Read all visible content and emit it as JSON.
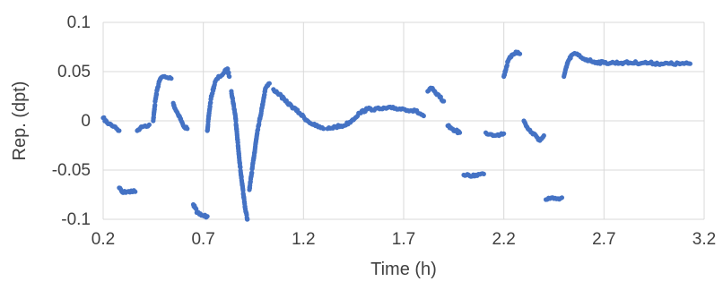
{
  "chart_data": {
    "type": "scatter",
    "title": "",
    "xlabel": "Time (h)",
    "ylabel": "Rep. (dpt)",
    "xlim": [
      0.2,
      3.2
    ],
    "ylim": [
      -0.1,
      0.1
    ],
    "x_ticks": [
      "0.2",
      "0.7",
      "1.2",
      "1.7",
      "2.2",
      "2.7",
      "3.2"
    ],
    "y_ticks": [
      "0.1",
      "0.05",
      "0",
      "-0.05",
      "-0.1"
    ],
    "grid": true,
    "legend": "none",
    "marker_color": "#4472C4",
    "series": [
      {
        "segments": [
          [
            [
              0.2,
              0.003
            ],
            [
              0.22,
              -0.002
            ],
            [
              0.24,
              -0.004
            ],
            [
              0.26,
              -0.006
            ],
            [
              0.28,
              -0.01
            ]
          ],
          [
            [
              0.28,
              -0.068
            ],
            [
              0.3,
              -0.073
            ],
            [
              0.32,
              -0.072
            ],
            [
              0.34,
              -0.071
            ],
            [
              0.36,
              -0.072
            ]
          ],
          [
            [
              0.37,
              -0.01
            ],
            [
              0.39,
              -0.006
            ],
            [
              0.41,
              -0.005
            ],
            [
              0.43,
              -0.004
            ]
          ],
          [
            [
              0.45,
              0.0
            ],
            [
              0.46,
              0.02
            ],
            [
              0.47,
              0.032
            ],
            [
              0.48,
              0.04
            ],
            [
              0.49,
              0.044
            ],
            [
              0.5,
              0.045
            ],
            [
              0.52,
              0.044
            ],
            [
              0.54,
              0.043
            ]
          ],
          [
            [
              0.55,
              0.018
            ],
            [
              0.56,
              0.012
            ],
            [
              0.58,
              0.005
            ],
            [
              0.6,
              -0.005
            ],
            [
              0.62,
              -0.008
            ]
          ],
          [
            [
              0.65,
              -0.085
            ],
            [
              0.67,
              -0.093
            ],
            [
              0.69,
              -0.096
            ],
            [
              0.72,
              -0.097
            ]
          ],
          [
            [
              0.72,
              -0.01
            ],
            [
              0.73,
              0.01
            ],
            [
              0.74,
              0.025
            ],
            [
              0.76,
              0.04
            ],
            [
              0.78,
              0.045
            ],
            [
              0.8,
              0.048
            ],
            [
              0.82,
              0.053
            ],
            [
              0.83,
              0.045
            ]
          ],
          [
            [
              0.84,
              0.03
            ],
            [
              0.86,
              0.005
            ],
            [
              0.88,
              -0.04
            ],
            [
              0.9,
              -0.075
            ],
            [
              0.91,
              -0.09
            ],
            [
              0.92,
              -0.1
            ]
          ],
          [
            [
              0.93,
              -0.07
            ],
            [
              0.95,
              -0.04
            ],
            [
              0.97,
              -0.01
            ],
            [
              0.99,
              0.01
            ],
            [
              1.01,
              0.033
            ],
            [
              1.03,
              0.038
            ]
          ],
          [
            [
              1.05,
              0.032
            ],
            [
              1.08,
              0.027
            ],
            [
              1.11,
              0.02
            ],
            [
              1.14,
              0.015
            ],
            [
              1.18,
              0.008
            ],
            [
              1.22,
              0.0
            ],
            [
              1.26,
              -0.005
            ],
            [
              1.3,
              -0.008
            ]
          ],
          [
            [
              1.32,
              -0.008
            ],
            [
              1.36,
              -0.006
            ],
            [
              1.4,
              -0.005
            ],
            [
              1.44,
              0.0
            ],
            [
              1.48,
              0.008
            ],
            [
              1.52,
              0.012
            ],
            [
              1.58,
              0.012
            ],
            [
              1.64,
              0.013
            ],
            [
              1.7,
              0.012
            ],
            [
              1.76,
              0.01
            ],
            [
              1.8,
              0.005
            ]
          ],
          [
            [
              1.82,
              0.03
            ],
            [
              1.84,
              0.033
            ],
            [
              1.86,
              0.028
            ],
            [
              1.88,
              0.024
            ],
            [
              1.9,
              0.02
            ]
          ],
          [
            [
              1.92,
              -0.005
            ],
            [
              1.94,
              -0.008
            ],
            [
              1.96,
              -0.01
            ],
            [
              1.98,
              -0.012
            ]
          ],
          [
            [
              2.0,
              -0.055
            ],
            [
              2.03,
              -0.056
            ],
            [
              2.06,
              -0.055
            ],
            [
              2.1,
              -0.054
            ]
          ],
          [
            [
              2.11,
              -0.012
            ],
            [
              2.14,
              -0.014
            ],
            [
              2.17,
              -0.014
            ],
            [
              2.2,
              -0.013
            ]
          ],
          [
            [
              2.2,
              0.045
            ],
            [
              2.22,
              0.06
            ],
            [
              2.24,
              0.067
            ],
            [
              2.26,
              0.07
            ],
            [
              2.28,
              0.068
            ]
          ],
          [
            [
              2.3,
              0.0
            ],
            [
              2.32,
              -0.008
            ],
            [
              2.34,
              -0.012
            ],
            [
              2.36,
              -0.015
            ],
            [
              2.38,
              -0.02
            ],
            [
              2.4,
              -0.015
            ]
          ],
          [
            [
              2.41,
              -0.08
            ],
            [
              2.43,
              -0.079
            ],
            [
              2.45,
              -0.079
            ],
            [
              2.47,
              -0.079
            ],
            [
              2.49,
              -0.078
            ]
          ],
          [
            [
              2.5,
              0.045
            ],
            [
              2.52,
              0.06
            ],
            [
              2.54,
              0.067
            ],
            [
              2.56,
              0.068
            ],
            [
              2.6,
              0.063
            ],
            [
              2.65,
              0.06
            ],
            [
              2.7,
              0.059
            ],
            [
              2.8,
              0.059
            ],
            [
              2.9,
              0.059
            ],
            [
              3.0,
              0.058
            ],
            [
              3.1,
              0.058
            ],
            [
              3.13,
              0.058
            ]
          ]
        ]
      }
    ]
  }
}
